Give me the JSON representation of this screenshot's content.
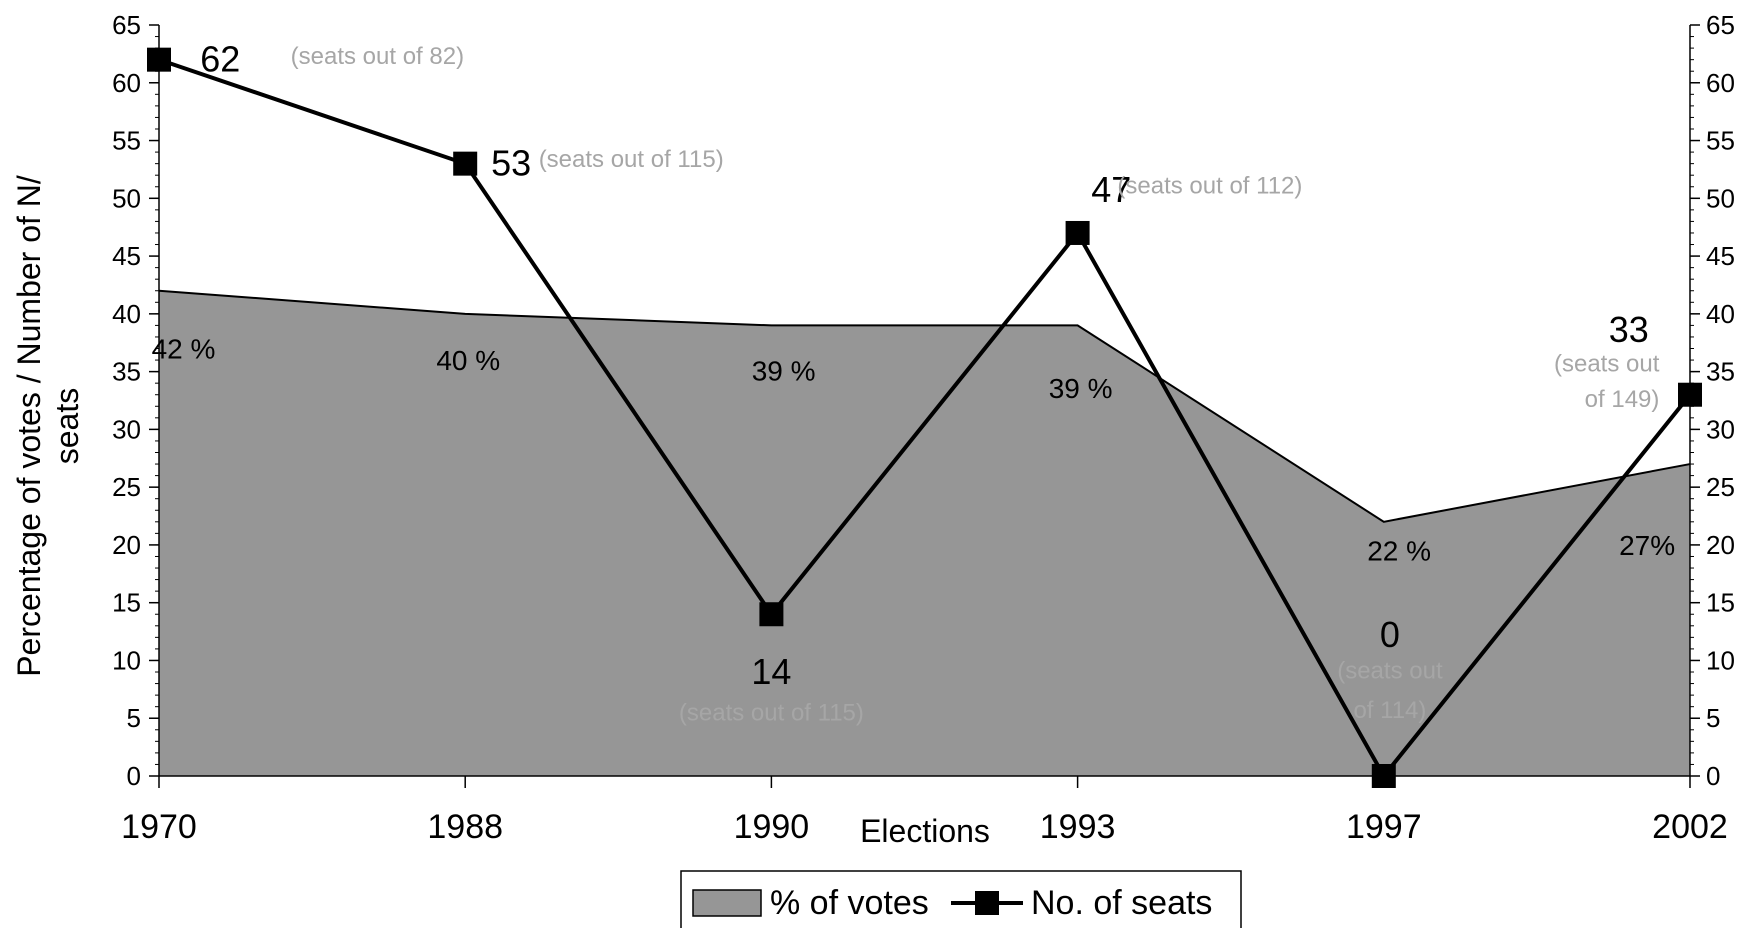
{
  "chart_data": {
    "type": "area+line",
    "title": "",
    "xlabel": "Elections",
    "ylabel": "Percentage of votes / Number of N/ seats",
    "ylabel_lines": [
      "Percentage of votes / Number of N/",
      "seats"
    ],
    "ylim": [
      0,
      65
    ],
    "ytick_step": 5,
    "categories": [
      "1970",
      "1988",
      "1990",
      "1993",
      "1997",
      "2002"
    ],
    "series": [
      {
        "name": "% of votes",
        "kind": "area",
        "color": "#969696",
        "values": [
          42,
          40,
          39,
          39,
          22,
          27
        ],
        "labels": [
          "42 %",
          "40 %",
          "39 %",
          "39 %",
          "22 %",
          "27%"
        ]
      },
      {
        "name": "No. of seats",
        "kind": "line",
        "color": "#000000",
        "values": [
          62,
          53,
          14,
          47,
          0,
          33
        ],
        "labels": [
          "62",
          "53",
          "14",
          "47",
          "0",
          "33"
        ],
        "notes": [
          [
            "(seats out of 82)"
          ],
          [
            "(seats out of 115)"
          ],
          [
            "(seats out of 115)"
          ],
          [
            "(seats out of 112)"
          ],
          [
            "(seats out",
            "of 114)"
          ],
          [
            "(seats out",
            "of 149)"
          ]
        ]
      }
    ],
    "legend_position": "bottom-center",
    "grid": false
  }
}
